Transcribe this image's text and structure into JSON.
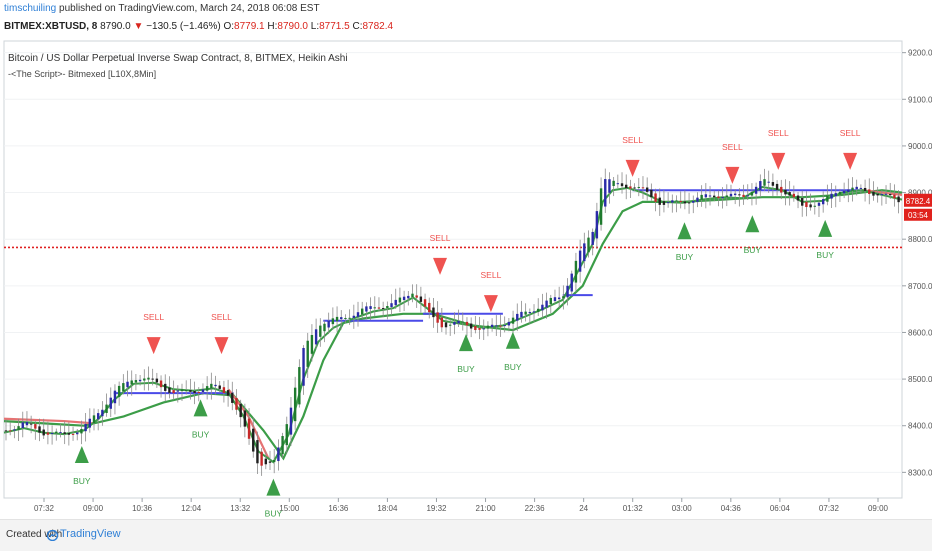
{
  "header": {
    "author": "timschuiling",
    "published": "published on TradingView.com, March 24, 2018 06:08 EST",
    "symbol": "BITMEX:XBTUSD, 8",
    "last": "8790.0",
    "change": "−130.5 (−1.46%)",
    "o_label": "O:",
    "o": "8779.1",
    "h_label": "H:",
    "h": "8790.0",
    "l_label": "L:",
    "l": "8771.5",
    "c_label": "C:",
    "c": "8782.4"
  },
  "legend": {
    "title": "Bitcoin / US Dollar Perpetual Inverse Swap Contract, 8, BITMEX, Heikin Ashi",
    "script": "-<The Script>- Bitmexed [L10X,8Min]"
  },
  "footer": {
    "created": "Created with",
    "brand": "TradingView"
  },
  "colors": {
    "sell": "#ef5350",
    "buy": "#3c9d48",
    "ma_fast": "#3c9d48",
    "ma_slow_up": "#3c9d48",
    "ma_red": "#e57373",
    "blue_line": "#4a4ae8",
    "level": "#e02020",
    "price_tag": "#e0221d"
  },
  "chart_data": {
    "type": "line",
    "title": "Bitcoin / US Dollar Perpetual Inverse Swap Contract, 8, BITMEX, Heikin Ashi",
    "x_ticks": [
      "07:32",
      "09:00",
      "10:36",
      "12:04",
      "13:32",
      "15:00",
      "16:36",
      "18:04",
      "19:32",
      "21:00",
      "22:36",
      "24",
      "01:32",
      "03:00",
      "04:36",
      "06:04",
      "07:32",
      "09:00"
    ],
    "y_ticks": [
      8300.0,
      8400.0,
      8500.0,
      8600.0,
      8700.0,
      8800.0,
      8900.0,
      9000.0,
      9100.0,
      9200.0
    ],
    "y_tick_labels": [
      "8300.0",
      "8400.0",
      "8500.0",
      "8600.0",
      "8700.0",
      "8800.0",
      "8900.0",
      "9000.0",
      "9100.0",
      "9200.0"
    ],
    "ylim": [
      8245,
      9225
    ],
    "xlim": [
      0,
      900
    ],
    "horizontal_line": 8782.4,
    "last_price_label": "8782.4",
    "countdown_label": "03:54",
    "series": [
      {
        "name": "",
        "role": "heikin-ashi-close",
        "x": [
          0,
          20,
          40,
          60,
          80,
          95,
          110,
          130,
          150,
          170,
          190,
          210,
          225,
          240,
          255,
          270,
          285,
          300,
          315,
          330,
          350,
          370,
          390,
          410,
          425,
          440,
          460,
          480,
          500,
          520,
          540,
          560,
          575,
          590,
          600,
          610,
          625,
          640,
          660,
          680,
          700,
          720,
          740,
          760,
          780,
          800,
          820,
          840,
          860,
          880,
          900
        ],
        "y": [
          8390,
          8405,
          8385,
          8380,
          8395,
          8430,
          8470,
          8505,
          8495,
          8470,
          8475,
          8485,
          8470,
          8400,
          8320,
          8315,
          8420,
          8560,
          8620,
          8625,
          8640,
          8655,
          8660,
          8690,
          8640,
          8615,
          8620,
          8605,
          8620,
          8640,
          8660,
          8680,
          8760,
          8820,
          8930,
          8920,
          8915,
          8905,
          8875,
          8880,
          8890,
          8895,
          8890,
          8925,
          8905,
          8870,
          8880,
          8910,
          8905,
          8895,
          8880
        ]
      },
      {
        "name": "",
        "role": "fast-ma",
        "x": [
          0,
          20,
          40,
          60,
          80,
          95,
          110,
          130,
          150,
          170,
          190,
          210,
          225,
          240,
          255,
          270,
          285,
          300,
          315,
          330,
          350,
          370,
          390,
          410,
          425,
          440,
          460,
          480,
          500,
          520,
          540,
          560,
          575,
          590,
          600,
          610,
          625,
          640,
          660,
          680,
          700,
          720,
          740,
          760,
          780,
          800,
          820,
          840,
          860,
          880,
          900
        ],
        "y": [
          8385,
          8395,
          8385,
          8382,
          8390,
          8415,
          8455,
          8490,
          8492,
          8478,
          8475,
          8480,
          8470,
          8420,
          8345,
          8322,
          8380,
          8500,
          8580,
          8610,
          8630,
          8645,
          8652,
          8675,
          8650,
          8625,
          8618,
          8610,
          8615,
          8632,
          8650,
          8670,
          8730,
          8790,
          8880,
          8905,
          8910,
          8900,
          8880,
          8878,
          8885,
          8890,
          8888,
          8912,
          8905,
          8880,
          8882,
          8900,
          8905,
          8895,
          8885
        ]
      },
      {
        "name": "",
        "role": "slow-ma",
        "x": [
          0,
          40,
          80,
          120,
          160,
          200,
          230,
          260,
          280,
          300,
          320,
          340,
          360,
          400,
          430,
          470,
          510,
          550,
          580,
          600,
          620,
          640,
          680,
          720,
          760,
          800,
          840,
          880,
          900
        ],
        "y": [
          8410,
          8405,
          8400,
          8420,
          8450,
          8470,
          8465,
          8390,
          8330,
          8420,
          8540,
          8620,
          8630,
          8640,
          8640,
          8615,
          8605,
          8640,
          8700,
          8790,
          8860,
          8880,
          8880,
          8885,
          8890,
          8890,
          8895,
          8905,
          8900
        ]
      }
    ],
    "signals": [
      {
        "type": "SELL",
        "x": 150,
        "y": 8590
      },
      {
        "type": "SELL",
        "x": 218,
        "y": 8590
      },
      {
        "type": "SELL",
        "x": 437,
        "y": 8760
      },
      {
        "type": "SELL",
        "x": 488,
        "y": 8680
      },
      {
        "type": "SELL",
        "x": 630,
        "y": 8970
      },
      {
        "type": "SELL",
        "x": 730,
        "y": 8955
      },
      {
        "type": "SELL",
        "x": 776,
        "y": 8985
      },
      {
        "type": "SELL",
        "x": 848,
        "y": 8985
      },
      {
        "type": "BUY",
        "x": 78,
        "y": 8320
      },
      {
        "type": "BUY",
        "x": 197,
        "y": 8420
      },
      {
        "type": "BUY",
        "x": 270,
        "y": 8250
      },
      {
        "type": "BUY",
        "x": 463,
        "y": 8560
      },
      {
        "type": "BUY",
        "x": 510,
        "y": 8565
      },
      {
        "type": "BUY",
        "x": 682,
        "y": 8800
      },
      {
        "type": "BUY",
        "x": 750,
        "y": 8815
      },
      {
        "type": "BUY",
        "x": 823,
        "y": 8805
      }
    ],
    "grid": true
  }
}
